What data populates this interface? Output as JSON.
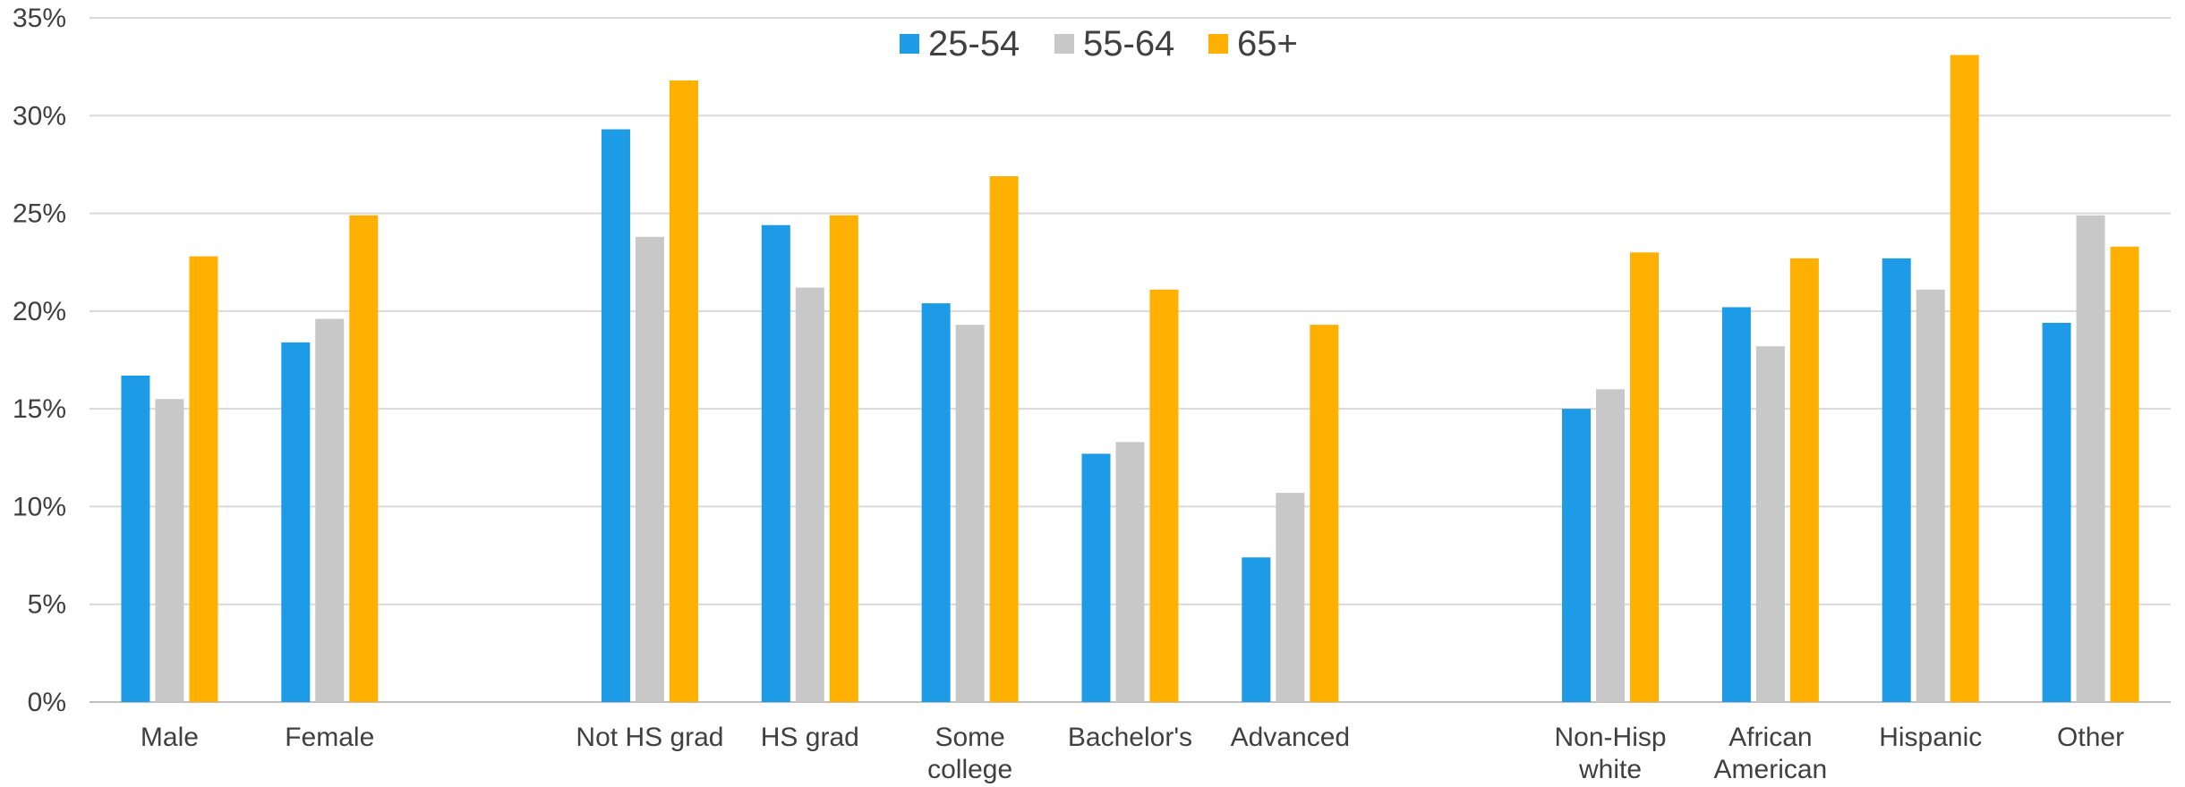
{
  "chart_data": {
    "type": "bar",
    "categories": [
      "Male",
      "Female",
      "",
      "Not HS grad",
      "HS grad",
      "Some college",
      "Bachelor's",
      "Advanced",
      "",
      "Non-Hisp white",
      "African American",
      "Hispanic",
      "Other"
    ],
    "category_lines": [
      [
        "Male"
      ],
      [
        "Female"
      ],
      [],
      [
        "Not HS grad"
      ],
      [
        "HS grad"
      ],
      [
        "Some",
        "college"
      ],
      [
        "Bachelor's"
      ],
      [
        "Advanced"
      ],
      [],
      [
        "Non-Hisp",
        "white"
      ],
      [
        "African",
        "American"
      ],
      [
        "Hispanic"
      ],
      [
        "Other"
      ]
    ],
    "series": [
      {
        "name": "25-54",
        "color": "#1E9BE6",
        "values": [
          16.7,
          18.4,
          null,
          29.3,
          24.4,
          20.4,
          12.7,
          7.4,
          null,
          15.0,
          20.2,
          22.7,
          19.4
        ]
      },
      {
        "name": "55-64",
        "color": "#C8C8C8",
        "values": [
          15.5,
          19.6,
          null,
          23.8,
          21.2,
          19.3,
          13.3,
          10.7,
          null,
          16.0,
          18.2,
          21.1,
          24.9
        ]
      },
      {
        "name": "65+",
        "color": "#FFB000",
        "values": [
          22.8,
          24.9,
          null,
          31.8,
          24.9,
          26.9,
          21.1,
          19.3,
          null,
          23.0,
          22.7,
          33.1,
          23.3
        ]
      }
    ],
    "ylim": [
      0,
      35
    ],
    "yticks": [
      0,
      5,
      10,
      15,
      20,
      25,
      30,
      35
    ],
    "ytick_labels": [
      "0%",
      "5%",
      "10%",
      "15%",
      "20%",
      "25%",
      "30%",
      "35%"
    ],
    "grid": true,
    "legend_position": "top-center"
  }
}
